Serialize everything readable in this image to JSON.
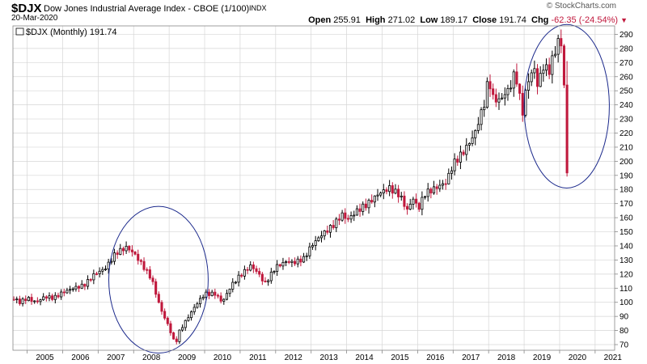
{
  "header": {
    "symbol": "$DJX",
    "title": "Dow Jones Industrial Average Index - CBOE (1/100)",
    "exchange": "INDX",
    "date": "20-Mar-2020",
    "brand": "© StockCharts.com",
    "open_label": "Open",
    "open_value": "255.91",
    "high_label": "High",
    "high_value": "271.02",
    "low_label": "Low",
    "low_value": "189.17",
    "close_label": "Close",
    "close_value": "191.74",
    "chg_label": "Chg",
    "chg_value": "-62.35 (-24.54%)",
    "chg_icon": "down-triangle-icon"
  },
  "legend": {
    "text": "$DJX (Monthly) 191.74"
  },
  "colors": {
    "up": "#000000",
    "down": "#c0183c",
    "circle": "#1c2a8c",
    "grid": "#d6d6d6"
  },
  "chart_data": {
    "type": "candlestick",
    "title": "",
    "xlabel": "",
    "ylabel": "",
    "period": "monthly",
    "xlim": [
      2004.6,
      2021.55
    ],
    "ylim": [
      66,
      296
    ],
    "y_ticks": [
      70,
      80,
      90,
      100,
      110,
      120,
      130,
      140,
      150,
      160,
      170,
      180,
      190,
      200,
      210,
      220,
      230,
      240,
      250,
      260,
      270,
      280,
      290
    ],
    "x_ticks": [
      "2005",
      "2006",
      "2007",
      "2008",
      "2009",
      "2010",
      "2011",
      "2012",
      "2013",
      "2014",
      "2015",
      "2016",
      "2017",
      "2018",
      "2019",
      "2020",
      "2021"
    ],
    "grid": true,
    "y_axis_side": "right",
    "anchors": [
      [
        2004.6,
        103
      ],
      [
        2004.8,
        100
      ],
      [
        2005.0,
        103
      ],
      [
        2005.25,
        100
      ],
      [
        2005.5,
        104
      ],
      [
        2005.75,
        103
      ],
      [
        2006.0,
        107
      ],
      [
        2006.3,
        110
      ],
      [
        2006.6,
        112
      ],
      [
        2006.9,
        120
      ],
      [
        2007.2,
        124
      ],
      [
        2007.5,
        135
      ],
      [
        2007.8,
        139
      ],
      [
        2008.0,
        135
      ],
      [
        2008.2,
        128
      ],
      [
        2008.5,
        117
      ],
      [
        2008.75,
        96
      ],
      [
        2009.0,
        82
      ],
      [
        2009.17,
        70
      ],
      [
        2009.3,
        80
      ],
      [
        2009.5,
        88
      ],
      [
        2009.75,
        98
      ],
      [
        2010.0,
        106
      ],
      [
        2010.3,
        106
      ],
      [
        2010.5,
        100
      ],
      [
        2010.75,
        112
      ],
      [
        2011.0,
        119
      ],
      [
        2011.3,
        126
      ],
      [
        2011.5,
        121
      ],
      [
        2011.7,
        113
      ],
      [
        2012.0,
        125
      ],
      [
        2012.3,
        129
      ],
      [
        2012.5,
        128
      ],
      [
        2012.8,
        131
      ],
      [
        2013.0,
        140
      ],
      [
        2013.3,
        148
      ],
      [
        2013.6,
        154
      ],
      [
        2013.9,
        163
      ],
      [
        2014.0,
        158
      ],
      [
        2014.3,
        165
      ],
      [
        2014.6,
        170
      ],
      [
        2014.9,
        177
      ],
      [
        2015.2,
        181
      ],
      [
        2015.5,
        176
      ],
      [
        2015.7,
        165
      ],
      [
        2015.9,
        175
      ],
      [
        2016.0,
        165
      ],
      [
        2016.2,
        177
      ],
      [
        2016.5,
        181
      ],
      [
        2016.8,
        185
      ],
      [
        2017.0,
        198
      ],
      [
        2017.3,
        207
      ],
      [
        2017.6,
        219
      ],
      [
        2017.9,
        243
      ],
      [
        2018.0,
        261
      ],
      [
        2018.1,
        245
      ],
      [
        2018.3,
        243
      ],
      [
        2018.6,
        252
      ],
      [
        2018.75,
        264
      ],
      [
        2018.95,
        234
      ],
      [
        2019.1,
        257
      ],
      [
        2019.3,
        266
      ],
      [
        2019.4,
        250
      ],
      [
        2019.5,
        268
      ],
      [
        2019.7,
        264
      ],
      [
        2019.95,
        285
      ],
      [
        2020.05,
        283
      ],
      [
        2020.12,
        257
      ],
      [
        2020.22,
        191.74
      ]
    ],
    "annotations": [
      {
        "type": "ellipse",
        "label": "",
        "x_center": 2008.7,
        "y_center": 116,
        "x_radius": 1.4,
        "y_radius": 52
      },
      {
        "type": "ellipse",
        "label": "",
        "x_center": 2020.2,
        "y_center": 239,
        "x_radius": 1.2,
        "y_radius": 58
      }
    ]
  }
}
